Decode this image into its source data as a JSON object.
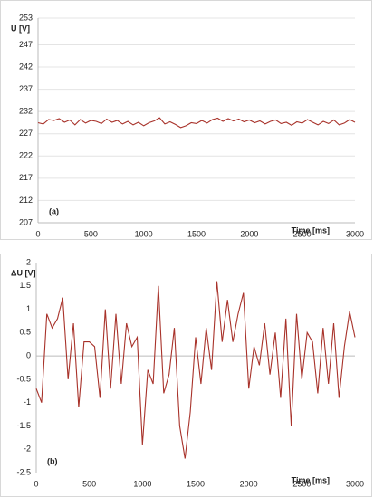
{
  "chart_data": [
    {
      "type": "line",
      "ylabel": "U [V]",
      "xlabel": "Time [ms]",
      "annotation": "(a)",
      "xlim": [
        0,
        3000
      ],
      "xticks": [
        0,
        500,
        1000,
        1500,
        2000,
        2500,
        3000
      ],
      "ylim": [
        207,
        253
      ],
      "yticks": [
        207,
        212,
        217,
        222,
        227,
        232,
        237,
        242,
        247,
        253
      ],
      "grid": true,
      "x": [
        0,
        50,
        100,
        150,
        200,
        250,
        300,
        350,
        400,
        450,
        500,
        550,
        600,
        650,
        700,
        750,
        800,
        850,
        900,
        950,
        1000,
        1050,
        1100,
        1150,
        1200,
        1250,
        1300,
        1350,
        1400,
        1450,
        1500,
        1550,
        1600,
        1650,
        1700,
        1750,
        1800,
        1850,
        1900,
        1950,
        2000,
        2050,
        2100,
        2150,
        2200,
        2250,
        2300,
        2350,
        2400,
        2450,
        2500,
        2550,
        2600,
        2650,
        2700,
        2750,
        2800,
        2850,
        2900,
        2950,
        3000
      ],
      "series": [
        {
          "color": "#a8322a",
          "values": [
            229.5,
            229.2,
            230.2,
            230.0,
            230.4,
            229.6,
            230.1,
            229.0,
            230.2,
            229.4,
            230.0,
            229.8,
            229.3,
            230.3,
            229.6,
            230.0,
            229.2,
            229.8,
            229.0,
            229.6,
            228.8,
            229.5,
            229.9,
            230.6,
            229.2,
            229.7,
            229.1,
            228.4,
            228.8,
            229.5,
            229.3,
            230.0,
            229.4,
            230.2,
            230.5,
            229.8,
            230.4,
            229.9,
            230.3,
            229.7,
            230.1,
            229.5,
            229.9,
            229.2,
            229.8,
            230.1,
            229.3,
            229.6,
            228.9,
            229.7,
            229.4,
            230.2,
            229.6,
            229.0,
            229.8,
            229.3,
            230.1,
            229.0,
            229.4,
            230.2,
            229.6
          ]
        }
      ]
    },
    {
      "type": "line",
      "ylabel": "ΔU [V]",
      "xlabel": "Time [ms]",
      "annotation": "(b)",
      "xlim": [
        0,
        3000
      ],
      "xticks": [
        0,
        500,
        1000,
        1500,
        2000,
        2500,
        3000
      ],
      "ylim": [
        -2.5,
        2
      ],
      "yticks": [
        -2.5,
        -2,
        -1.5,
        -1,
        -0.5,
        0,
        0.5,
        1,
        1.5,
        2
      ],
      "grid": false,
      "x": [
        0,
        50,
        100,
        150,
        200,
        250,
        300,
        350,
        400,
        450,
        500,
        550,
        600,
        650,
        700,
        750,
        800,
        850,
        900,
        950,
        1000,
        1050,
        1100,
        1150,
        1200,
        1250,
        1300,
        1350,
        1400,
        1450,
        1500,
        1550,
        1600,
        1650,
        1700,
        1750,
        1800,
        1850,
        1900,
        1950,
        2000,
        2050,
        2100,
        2150,
        2200,
        2250,
        2300,
        2350,
        2400,
        2450,
        2500,
        2550,
        2600,
        2650,
        2700,
        2750,
        2800,
        2850,
        2900,
        2950,
        3000
      ],
      "series": [
        {
          "color": "#a8322a",
          "values": [
            -0.7,
            -1.0,
            0.9,
            0.6,
            0.8,
            1.25,
            -0.5,
            0.7,
            -1.1,
            0.3,
            0.3,
            0.2,
            -0.9,
            1.0,
            -0.7,
            0.9,
            -0.6,
            0.7,
            0.2,
            0.4,
            -1.9,
            -0.3,
            -0.6,
            1.5,
            -0.8,
            -0.4,
            0.6,
            -1.5,
            -2.2,
            -1.2,
            0.4,
            -0.6,
            0.6,
            -0.3,
            1.6,
            0.3,
            1.2,
            0.3,
            0.9,
            1.35,
            -0.7,
            0.2,
            -0.2,
            0.7,
            -0.4,
            0.5,
            -0.9,
            0.8,
            -1.5,
            0.9,
            -0.5,
            0.5,
            0.3,
            -0.8,
            0.6,
            -0.6,
            0.7,
            -0.9,
            0.2,
            0.95,
            0.4
          ]
        }
      ]
    }
  ]
}
